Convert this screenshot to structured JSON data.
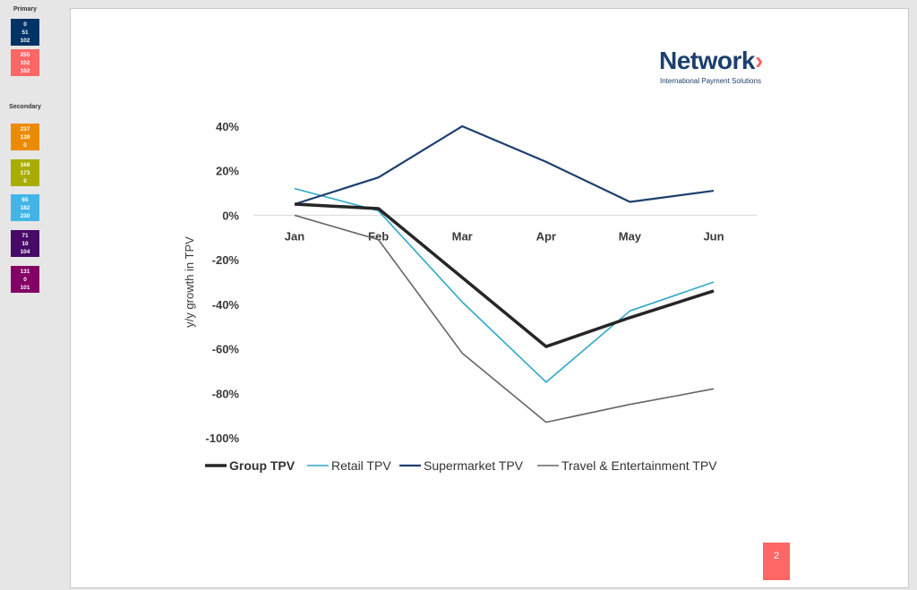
{
  "sidebar": {
    "primary_title": "Primary",
    "secondary_title": "Secondary",
    "primary": [
      {
        "r": "0",
        "g": "51",
        "b": "102",
        "color": "#003366"
      },
      {
        "r": "255",
        "g": "102",
        "b": "102",
        "color": "#ff6666"
      }
    ],
    "secondary": [
      {
        "r": "237",
        "g": "139",
        "b": "0",
        "color": "#ed8b00"
      },
      {
        "r": "168",
        "g": "173",
        "b": "0",
        "color": "#a8ad00"
      },
      {
        "r": "65",
        "g": "182",
        "b": "230",
        "color": "#41b6e6"
      },
      {
        "r": "71",
        "g": "10",
        "b": "104",
        "color": "#470a68"
      },
      {
        "r": "131",
        "g": "0",
        "b": "101",
        "color": "#830065"
      }
    ]
  },
  "logo": {
    "word": "Network",
    "chevron": "›",
    "tagline": "International Payment Solutions"
  },
  "page_number": "2",
  "chart_data": {
    "type": "line",
    "categories": [
      "Jan",
      "Feb",
      "Mar",
      "Apr",
      "May",
      "Jun"
    ],
    "ylabel": "y/y growth in TPV",
    "ylim": [
      -100,
      40
    ],
    "yticks": [
      40,
      20,
      0,
      -20,
      -40,
      -60,
      -80,
      -100
    ],
    "ytick_labels": [
      "40%",
      "20%",
      "0%",
      "-20%",
      "-40%",
      "-60%",
      "-80%",
      "-100%"
    ],
    "legend_position": "bottom",
    "series": [
      {
        "name": "Group TPV",
        "values": [
          5,
          3,
          -28,
          -59,
          -46,
          -34
        ],
        "color": "#262626",
        "bold": true
      },
      {
        "name": "Retail TPV",
        "values": [
          12,
          2,
          -39,
          -75,
          -43,
          -30
        ],
        "color": "#2ea8c9",
        "bold": false
      },
      {
        "name": "Supermarket TPV",
        "values": [
          5,
          17,
          40,
          24,
          6,
          11
        ],
        "color": "#1c3f6e",
        "bold": false
      },
      {
        "name": "Travel & Entertainment TPV",
        "values": [
          0,
          -11,
          -62,
          -93,
          -85,
          -78
        ],
        "color": "#666666",
        "bold": false
      }
    ]
  }
}
